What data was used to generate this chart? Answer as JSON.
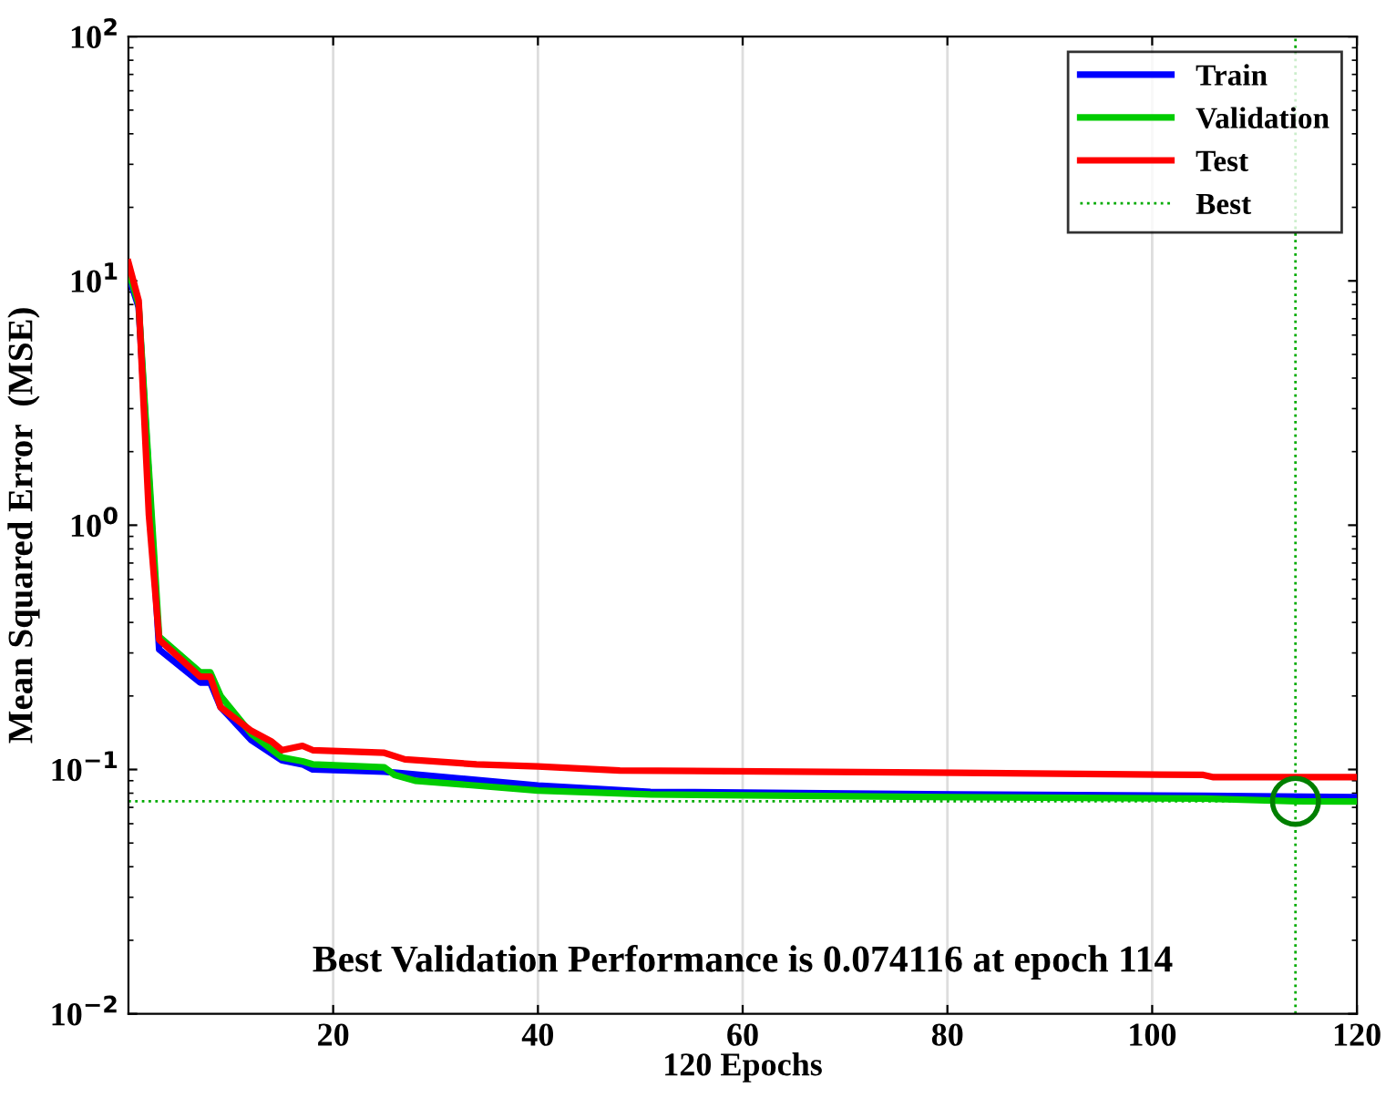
{
  "chart_data": {
    "type": "line",
    "xlabel": "120 Epochs",
    "ylabel": "Mean Squared Error  (MSE)",
    "annotations": [
      "Best Validation Performance is 0.074116 at epoch 114"
    ],
    "log": "y",
    "xlim": [
      0,
      120
    ],
    "xticks": [
      20,
      40,
      60,
      80,
      100,
      120
    ],
    "ylim": [
      0.01,
      100
    ],
    "yticks": [
      {
        "value": 0.01,
        "label": "10$^{−2}$"
      },
      {
        "value": 0.1,
        "label": "10$^{−1}$"
      },
      {
        "value": 1,
        "label": "10$^{0}$"
      },
      {
        "value": 10,
        "label": "10$^{1}$"
      },
      {
        "value": 100,
        "label": "10$^{2}$"
      }
    ],
    "grid": "x",
    "legend": "top right",
    "series": [
      {
        "name": "Train",
        "color": "#0000ff",
        "x": [
          0,
          1,
          3,
          7,
          8,
          9,
          12,
          15,
          17,
          18,
          25,
          40,
          51,
          81,
          105,
          120
        ],
        "values": [
          10.5,
          7.8,
          0.31,
          0.227,
          0.227,
          0.18,
          0.132,
          0.109,
          0.105,
          0.1,
          0.098,
          0.086,
          0.081,
          0.079,
          0.078,
          0.077
        ]
      },
      {
        "name": "Validation",
        "color": "#00cc00",
        "x": [
          0,
          1,
          3,
          7,
          8,
          9,
          12,
          15,
          17,
          18,
          25,
          26,
          28,
          40,
          51,
          81,
          105,
          114,
          120
        ],
        "values": [
          11,
          8,
          0.35,
          0.25,
          0.25,
          0.2,
          0.14,
          0.112,
          0.108,
          0.105,
          0.102,
          0.095,
          0.09,
          0.082,
          0.079,
          0.077,
          0.076,
          0.074116,
          0.074
        ]
      },
      {
        "name": "Test",
        "color": "#ff0000",
        "x": [
          0,
          1,
          2,
          3,
          7,
          8,
          9,
          12,
          14,
          15,
          17,
          18,
          25,
          27,
          34,
          40,
          48,
          81,
          105,
          106,
          120
        ],
        "values": [
          11.9,
          8.3,
          1.1,
          0.34,
          0.24,
          0.24,
          0.18,
          0.144,
          0.13,
          0.12,
          0.125,
          0.12,
          0.117,
          0.11,
          0.105,
          0.103,
          0.099,
          0.097,
          0.095,
          0.093,
          0.093
        ]
      },
      {
        "type": "scatter",
        "color": "#007f00",
        "marker": "circle",
        "x": [
          114
        ],
        "values": [
          0.074116
        ]
      }
    ],
    "ref_lines": [
      {
        "axis": "x",
        "value": 114,
        "label": "Best",
        "color": "#00aa00",
        "line_style": "dotted"
      },
      {
        "axis": "y",
        "value": 0.074116,
        "color": "#00aa00",
        "line_style": "dotted"
      }
    ]
  }
}
